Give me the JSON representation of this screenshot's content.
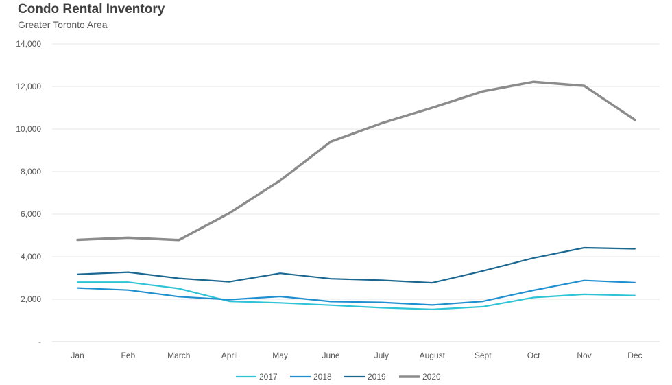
{
  "chart_data": {
    "type": "line",
    "title": "Condo Rental Inventory",
    "subtitle": "Greater Toronto Area",
    "categories": [
      "Jan",
      "Feb",
      "March",
      "April",
      "May",
      "June",
      "July",
      "August",
      "Sept",
      "Oct",
      "Nov",
      "Dec"
    ],
    "ylim": [
      0,
      14000
    ],
    "yticks": [
      0,
      2000,
      4000,
      6000,
      8000,
      10000,
      12000,
      14000
    ],
    "ytick_labels": [
      "-",
      "2,000",
      "4,000",
      "6,000",
      "8,000",
      "10,000",
      "12,000",
      "14,000"
    ],
    "grid": true,
    "legend_position": "bottom-center",
    "series": [
      {
        "name": "2017",
        "color": "#2ec4d6",
        "values": [
          2800,
          2800,
          2500,
          1900,
          1830,
          1720,
          1600,
          1520,
          1650,
          2080,
          2230,
          2170
        ]
      },
      {
        "name": "2018",
        "color": "#1f8fd0",
        "values": [
          2530,
          2430,
          2120,
          1980,
          2130,
          1890,
          1850,
          1730,
          1900,
          2420,
          2880,
          2780
        ]
      },
      {
        "name": "2019",
        "color": "#1a6791",
        "values": [
          3170,
          3270,
          2980,
          2820,
          3220,
          2960,
          2890,
          2770,
          3330,
          3940,
          4420,
          4370
        ]
      },
      {
        "name": "2020",
        "color": "#8c8c8c",
        "values": [
          4790,
          4890,
          4780,
          6050,
          7580,
          9410,
          10270,
          11000,
          11770,
          12220,
          12030,
          10430
        ]
      }
    ]
  }
}
